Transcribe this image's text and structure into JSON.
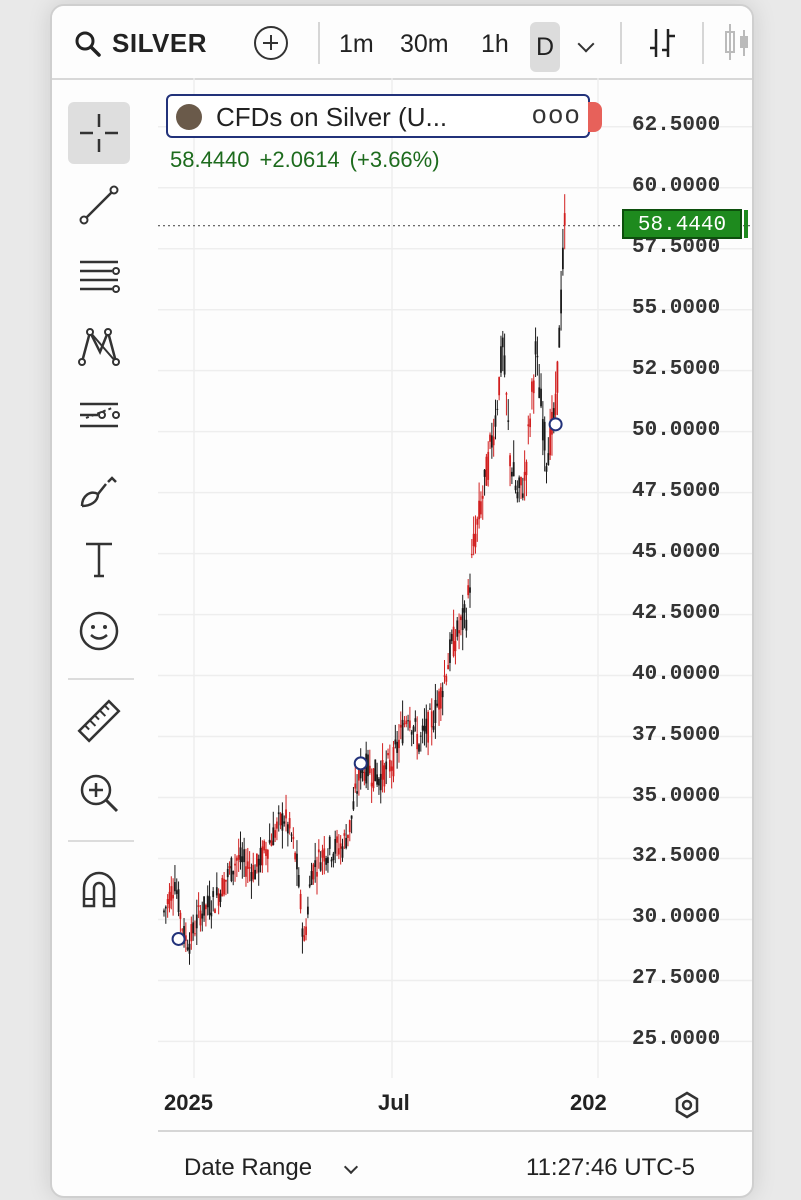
{
  "toolbar": {
    "symbol": "SILVER",
    "intervals": [
      "1m",
      "30m",
      "1h",
      "D"
    ],
    "active_interval": "D"
  },
  "legend": {
    "title": "CFDs on Silver (U...",
    "more": "ooo",
    "last": "58.4440",
    "change": "+2.0614",
    "change_pct": "(+3.66%)"
  },
  "price_scale": {
    "labels": [
      "62.5000",
      "60.0000",
      "57.5000",
      "55.0000",
      "52.5000",
      "50.0000",
      "47.5000",
      "45.0000",
      "42.5000",
      "40.0000",
      "37.5000",
      "35.0000",
      "32.5000",
      "30.0000",
      "27.5000",
      "25.0000"
    ],
    "last_price_badge": "58.4440"
  },
  "time_scale": {
    "labels": [
      "2025",
      "Jul",
      "202"
    ]
  },
  "footer": {
    "date_range": "Date Range",
    "clock": "11:27:46 UTC-5"
  },
  "colors": {
    "up": "#1a1a1a",
    "down": "#d11f1f",
    "last_price": "#1e8a1e",
    "legend_border": "#22327a"
  },
  "tools": [
    "crosshair-icon",
    "trend-line-icon",
    "fib-lines-icon",
    "pattern-icon",
    "forecast-icon",
    "brush-icon",
    "text-icon",
    "emoji-icon",
    "ruler-icon",
    "zoom-icon",
    "magnet-icon"
  ],
  "chart_data": {
    "type": "candlestick",
    "ylim": [
      23.5,
      64.5
    ],
    "y_ticks": [
      25,
      27.5,
      30,
      32.5,
      35,
      37.5,
      40,
      42.5,
      45,
      47.5,
      50,
      52.5,
      55,
      57.5,
      60,
      62.5
    ],
    "x_ticks": [
      "2025",
      "Jul",
      "202"
    ],
    "path": [
      [
        0,
        30.3
      ],
      [
        6,
        31.6
      ],
      [
        11,
        29.3
      ],
      [
        14,
        29.1
      ],
      [
        20,
        30.3
      ],
      [
        28,
        30.8
      ],
      [
        40,
        32.5
      ],
      [
        50,
        32.0
      ],
      [
        60,
        33.5
      ],
      [
        66,
        34.2
      ],
      [
        70,
        33.4
      ],
      [
        73,
        32.2
      ],
      [
        77,
        29.0
      ],
      [
        81,
        32.0
      ],
      [
        88,
        32.8
      ],
      [
        98,
        33.0
      ],
      [
        102,
        33.8
      ],
      [
        108,
        36.2
      ],
      [
        112,
        36.2
      ],
      [
        118,
        35.8
      ],
      [
        126,
        36.5
      ],
      [
        134,
        38.6
      ],
      [
        140,
        37.2
      ],
      [
        148,
        38.3
      ],
      [
        152,
        39.3
      ],
      [
        158,
        41.2
      ],
      [
        166,
        42.5
      ],
      [
        170,
        45.3
      ],
      [
        176,
        47.8
      ],
      [
        182,
        50.6
      ],
      [
        186,
        53.5
      ],
      [
        190,
        49.0
      ],
      [
        194,
        47.3
      ],
      [
        198,
        48.0
      ],
      [
        204,
        53.2
      ],
      [
        210,
        49.0
      ],
      [
        215,
        50.8
      ],
      [
        220,
        58.44
      ]
    ],
    "markers_up_to": 224,
    "markers": [
      [
        8,
        29.2
      ],
      [
        108,
        36.4
      ],
      [
        215,
        50.3
      ]
    ],
    "last": 58.444
  }
}
